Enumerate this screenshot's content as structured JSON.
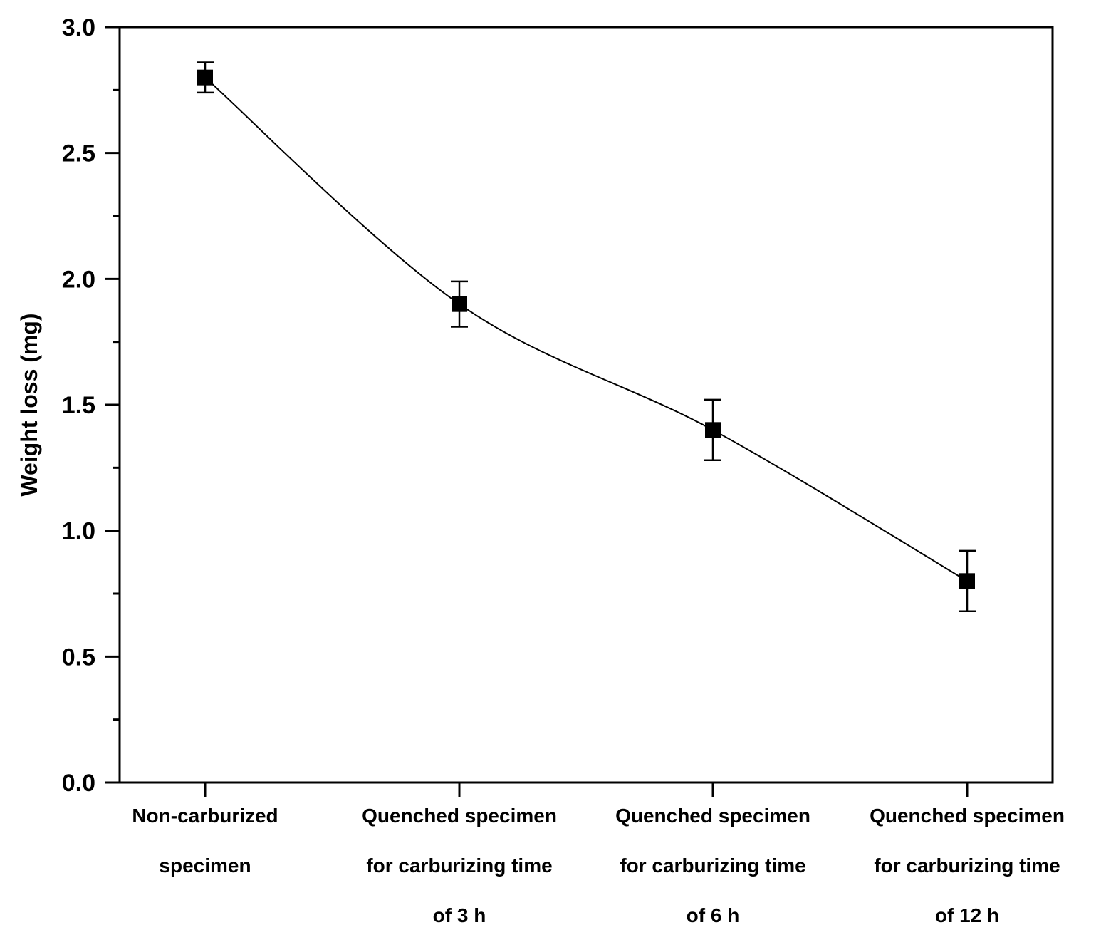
{
  "chart_data": {
    "type": "line",
    "title": "",
    "xlabel": "",
    "ylabel": "Weight loss (mg)",
    "ylim": [
      0,
      3.0
    ],
    "yticks": [
      "0.0",
      "0.5",
      "1.0",
      "1.5",
      "2.0",
      "2.5",
      "3.0"
    ],
    "grid": false,
    "categories": [
      [
        "Non-carburized",
        "specimen"
      ],
      [
        "Quenched specimen",
        "for carburizing time",
        "of 3 h"
      ],
      [
        "Quenched specimen",
        "for carburizing time",
        "of 6 h"
      ],
      [
        "Quenched specimen",
        "for carburizing time",
        "of 12 h"
      ]
    ],
    "series": [
      {
        "name": "Weight loss",
        "marker": "square",
        "color": "#000000",
        "values": [
          2.8,
          1.9,
          1.4,
          0.8
        ],
        "error": [
          0.06,
          0.09,
          0.12,
          0.12
        ]
      }
    ]
  }
}
